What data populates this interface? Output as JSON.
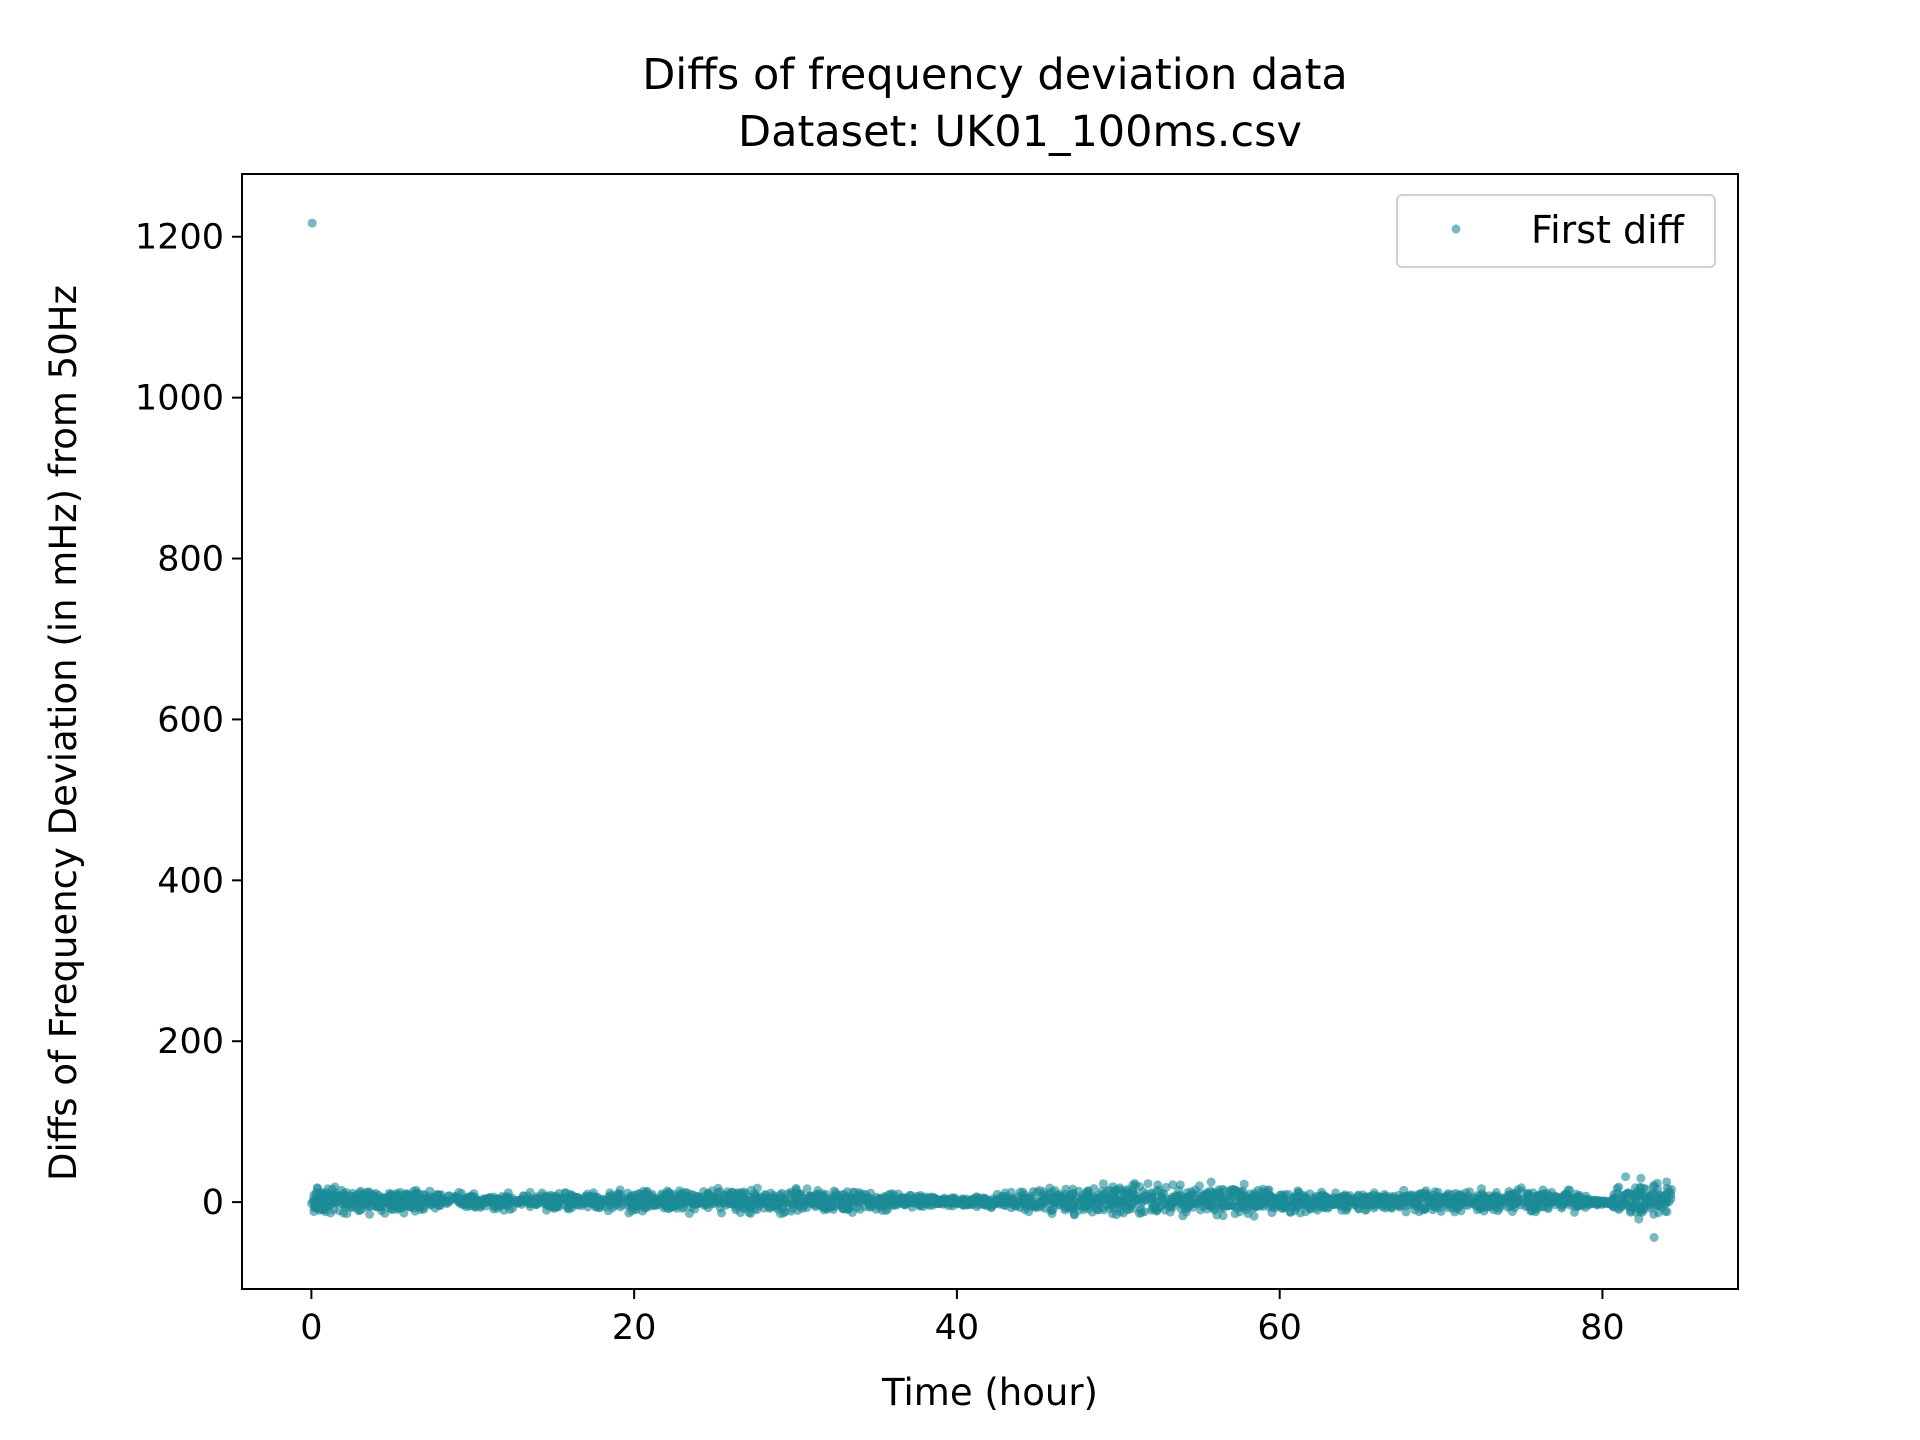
{
  "chart_data": {
    "type": "scatter",
    "title": "Diffs of frequency deviation data",
    "subtitle": "Dataset: UK01_100ms.csv",
    "xlabel": "Time (hour)",
    "ylabel": "Diffs of Frequency Deviation (in mHz) from 50Hz",
    "xlim": [
      -4.3,
      88.4
    ],
    "ylim": [
      -108,
      1278
    ],
    "xticks": [
      0,
      20,
      40,
      60,
      80
    ],
    "yticks": [
      0,
      200,
      400,
      600,
      800,
      1000,
      1200
    ],
    "grid": false,
    "legend": {
      "position": "top-right"
    },
    "series": [
      {
        "name": "First diff",
        "color": "#1a8a96",
        "outliers": [
          {
            "x": 0.05,
            "y": 1217
          },
          {
            "x": 83.2,
            "y": -44
          }
        ],
        "band_envelope": [
          {
            "x": 0,
            "lo": -18,
            "hi": 22
          },
          {
            "x": 5,
            "lo": -15,
            "hi": 18
          },
          {
            "x": 10,
            "lo": -12,
            "hi": 14
          },
          {
            "x": 15,
            "lo": -10,
            "hi": 12
          },
          {
            "x": 20,
            "lo": -14,
            "hi": 17
          },
          {
            "x": 25,
            "lo": -15,
            "hi": 18
          },
          {
            "x": 30,
            "lo": -16,
            "hi": 18
          },
          {
            "x": 35,
            "lo": -12,
            "hi": 14
          },
          {
            "x": 38,
            "lo": -8,
            "hi": 10
          },
          {
            "x": 40,
            "lo": -5,
            "hi": 6
          },
          {
            "x": 43,
            "lo": -10,
            "hi": 12
          },
          {
            "x": 47,
            "lo": -18,
            "hi": 22
          },
          {
            "x": 52,
            "lo": -18,
            "hi": 24
          },
          {
            "x": 57,
            "lo": -20,
            "hi": 28
          },
          {
            "x": 60,
            "lo": -15,
            "hi": 18
          },
          {
            "x": 65,
            "lo": -10,
            "hi": 12
          },
          {
            "x": 70,
            "lo": -14,
            "hi": 18
          },
          {
            "x": 75,
            "lo": -15,
            "hi": 18
          },
          {
            "x": 78.5,
            "lo": -13,
            "hi": 15
          },
          {
            "x": 79.2,
            "lo": -4,
            "hi": 4
          },
          {
            "x": 80.5,
            "lo": -3,
            "hi": 3
          },
          {
            "x": 81,
            "lo": -25,
            "hi": 32
          },
          {
            "x": 84.3,
            "lo": -25,
            "hi": 30
          }
        ]
      }
    ]
  }
}
